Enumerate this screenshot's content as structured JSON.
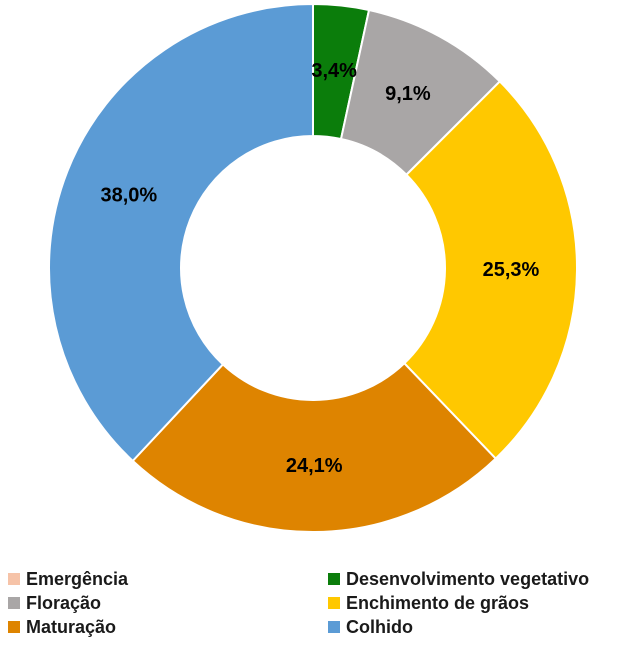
{
  "chart_data": {
    "type": "pie",
    "style": "donut",
    "categories": [
      "Emergência",
      "Desenvolvimento vegetativo",
      "Floração",
      "Enchimento de grãos",
      "Maturação",
      "Colhido"
    ],
    "values": [
      0.0,
      3.4,
      9.1,
      25.3,
      24.1,
      38.0
    ],
    "value_labels": [
      "",
      "3,4%",
      "9,1%",
      "25,3%",
      "24,1%",
      "38,0%"
    ],
    "colors": [
      "#f6c3a8",
      "#0b7d0b",
      "#a9a6a6",
      "#ffc800",
      "#de8400",
      "#5b9bd5"
    ],
    "title": "",
    "legend_position": "bottom",
    "legend_layout": "two-columns"
  }
}
